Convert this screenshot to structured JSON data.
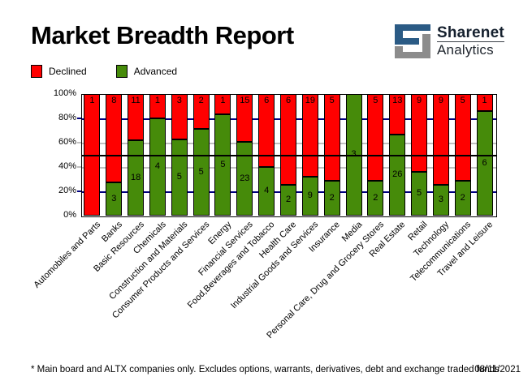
{
  "header": {
    "title": "Market Breadth Report",
    "logo": {
      "brand": "Sharenet",
      "subtitle": "Analytics"
    }
  },
  "legend": {
    "declined": "Declined",
    "advanced": "Advanced"
  },
  "footer": {
    "note": "* Main board and ALTX companies only. Excludes options, warrants, derivatives, debt and exchange traded funds",
    "date": "08/11/2021"
  },
  "colors": {
    "declined": "#FF0000",
    "advanced": "#468B0A",
    "grid_navy": "#000080",
    "grid_silver": "#C0C0C0",
    "mid_black": "#000000",
    "logo_blue": "#2B5B85",
    "logo_gray": "#8C8C8C"
  },
  "chart_data": {
    "type": "bar",
    "stacked": true,
    "normalized": "percent",
    "title": "Market Breadth Report",
    "ylim": [
      0,
      100
    ],
    "y_ticks": [
      "0%",
      "20%",
      "40%",
      "60%",
      "80%",
      "100%"
    ],
    "gridlines": {
      "navy_at": [
        20,
        80
      ],
      "silver_at": [
        40,
        60
      ],
      "black_at": [
        50
      ]
    },
    "legend_position": "top-left",
    "categories": [
      "Automobiles and Parts",
      "Banks",
      "Basic Resources",
      "Chemicals",
      "Construction and Materials",
      "Consumer Products and Services",
      "Energy",
      "Financial Services",
      "Food,Beverages and Tobacco",
      "Health Care",
      "Industrial Goods and Services",
      "Insurance",
      "Media",
      "Personal Care, Drug and Grocery Stores",
      "Real Estate",
      "Retail",
      "Technology",
      "Telecommunications",
      "Travel and Leisure"
    ],
    "series": [
      {
        "name": "Declined",
        "color": "#FF0000",
        "values": [
          1,
          8,
          11,
          1,
          3,
          2,
          1,
          15,
          6,
          6,
          19,
          5,
          0,
          5,
          13,
          9,
          9,
          5,
          1
        ]
      },
      {
        "name": "Advanced",
        "color": "#468B0A",
        "values": [
          0,
          3,
          18,
          4,
          5,
          5,
          5,
          23,
          4,
          2,
          9,
          2,
          3,
          2,
          26,
          5,
          3,
          2,
          6
        ]
      }
    ],
    "value_labels": "counts shown inside segments (zero counts unlabeled)"
  }
}
